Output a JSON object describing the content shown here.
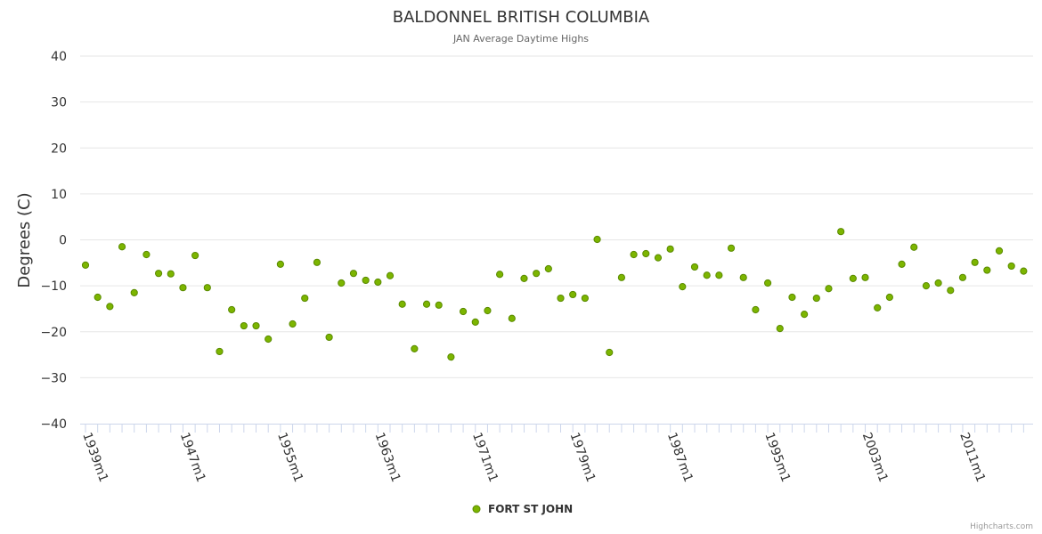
{
  "chart_data": {
    "type": "scatter",
    "title": "BALDONNEL BRITISH COLUMBIA",
    "subtitle": "JAN Average Daytime Highs",
    "xlabel": "",
    "ylabel": "Degrees (C)",
    "ylim": [
      -40,
      40
    ],
    "yticks": [
      40,
      30,
      20,
      10,
      0,
      -10,
      -20,
      -30,
      -40
    ],
    "ytick_labels": [
      "40",
      "30",
      "20",
      "10",
      "0",
      "−10",
      "−20",
      "−30",
      "−40"
    ],
    "xlim": [
      1939,
      2016
    ],
    "xticks": [
      1939,
      1947,
      1955,
      1963,
      1971,
      1979,
      1987,
      1995,
      2003,
      2011
    ],
    "xtick_labels": [
      "1939m1",
      "1947m1",
      "1955m1",
      "1963m1",
      "1971m1",
      "1979m1",
      "1987m1",
      "1995m1",
      "2003m1",
      "2011m1"
    ],
    "grid": true,
    "legend_position": "bottom-center",
    "series": [
      {
        "name": "FORT ST JOHN",
        "color": "#7cb500",
        "x": [
          1939,
          1940,
          1941,
          1942,
          1943,
          1944,
          1945,
          1946,
          1947,
          1948,
          1949,
          1950,
          1951,
          1952,
          1953,
          1954,
          1955,
          1956,
          1957,
          1958,
          1959,
          1960,
          1961,
          1962,
          1963,
          1964,
          1965,
          1966,
          1967,
          1968,
          1969,
          1970,
          1971,
          1972,
          1973,
          1974,
          1975,
          1976,
          1977,
          1978,
          1979,
          1980,
          1981,
          1982,
          1983,
          1984,
          1985,
          1986,
          1987,
          1988,
          1989,
          1990,
          1991,
          1992,
          1993,
          1994,
          1995,
          1996,
          1997,
          1998,
          1999,
          2000,
          2001,
          2002,
          2003,
          2004,
          2005,
          2006,
          2007,
          2008,
          2009,
          2010,
          2011,
          2012,
          2013,
          2014,
          2015,
          2016
        ],
        "values": [
          -5.5,
          -12.5,
          -14.5,
          -1.5,
          -11.5,
          -3.2,
          -7.3,
          -7.4,
          -10.4,
          -3.4,
          -10.4,
          -24.3,
          -15.2,
          -18.7,
          -18.7,
          -21.6,
          -5.3,
          -18.3,
          -12.7,
          -4.9,
          -21.2,
          -9.4,
          -7.3,
          -8.8,
          -9.2,
          -7.8,
          -14.0,
          -23.7,
          -14.0,
          -14.2,
          -25.5,
          -15.6,
          -17.9,
          -15.4,
          -7.5,
          -17.1,
          -8.4,
          -7.3,
          -6.3,
          -12.7,
          -11.9,
          -12.7,
          0.1,
          -24.5,
          -8.2,
          -3.2,
          -3.0,
          -3.9,
          -2.0,
          -10.2,
          -5.9,
          -7.7,
          -7.7,
          -1.8,
          -8.2,
          -15.2,
          -9.4,
          -19.3,
          -12.5,
          -16.2,
          -12.7,
          -10.6,
          1.8,
          -8.4,
          -8.2,
          -14.8,
          -12.5,
          -5.3,
          -1.6,
          -10.0,
          -9.4,
          -11.0,
          -8.2,
          -4.9,
          -6.6,
          -2.4,
          -5.7,
          -6.8
        ]
      }
    ]
  },
  "credits": "Highcharts.com",
  "colors": {
    "grid": "#e6e6e6",
    "axis": "#ccd6eb",
    "marker": "#7cb500",
    "marker_stroke": "#5a8a00"
  }
}
